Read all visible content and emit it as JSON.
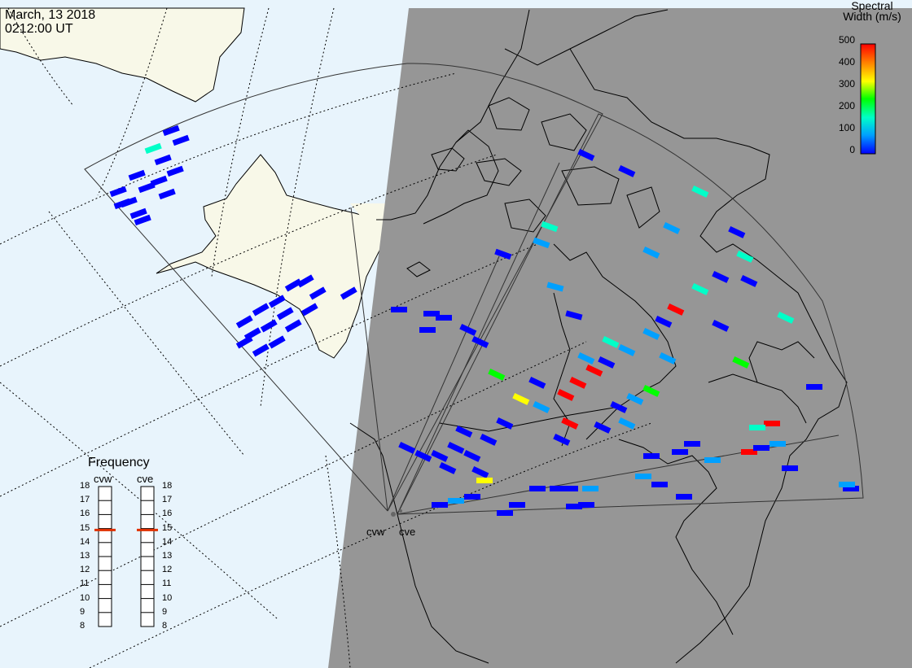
{
  "header": {
    "date": "March, 13 2018",
    "time": "0212:00 UT"
  },
  "colorbar": {
    "title_line1": "Spectral",
    "title_line2": "Width (m/s)",
    "ticks": [
      "0",
      "100",
      "200",
      "300",
      "400",
      "500"
    ],
    "range": [
      0,
      500
    ],
    "colors": [
      "#0000ff",
      "#00a0ff",
      "#00ffc8",
      "#00ff00",
      "#ffff00",
      "#ff8000",
      "#ff0000"
    ]
  },
  "frequency_panel": {
    "title": "Frequency",
    "radars": [
      {
        "name": "cvw",
        "value_mhz": 14.9
      },
      {
        "name": "cve",
        "value_mhz": 14.9
      }
    ],
    "scale": [
      "18",
      "17",
      "16",
      "15",
      "14",
      "13",
      "12",
      "11",
      "10",
      "9",
      "8"
    ],
    "range": [
      8,
      18
    ]
  },
  "map": {
    "radar_labels": [
      "cvw",
      "cve"
    ],
    "day_color": "#e8f4fc",
    "land_color": "#f8f8e8",
    "night_color": "#969696",
    "parameter": "Spectral Width",
    "fov_radars": [
      "cvw",
      "cve"
    ]
  }
}
